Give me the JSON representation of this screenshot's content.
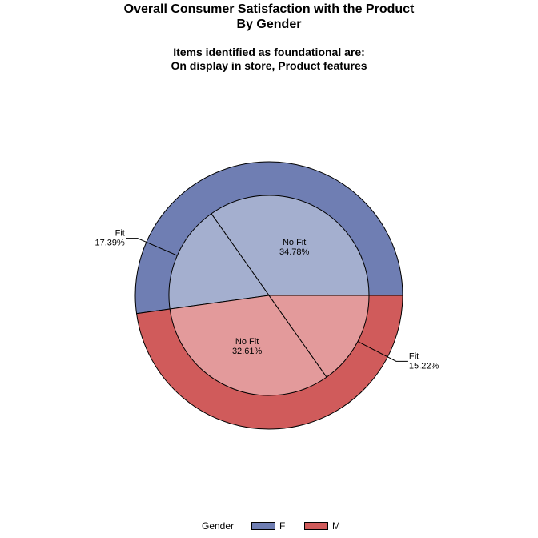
{
  "title": {
    "line1": "Overall Consumer Satisfaction with the Product",
    "line2": "By Gender"
  },
  "subtitle": {
    "line1": "Items identified as foundational are:",
    "line2": "On display in store, Product features"
  },
  "colors": {
    "F_outer": "#6F7EB3",
    "F_inner": "#A4AFCF",
    "M_outer": "#D05B5B",
    "M_inner": "#E39A9B",
    "edge": "#000000"
  },
  "chart_data": {
    "type": "pie",
    "variant": "nested-ring",
    "outer_ring": {
      "name": "Gender",
      "slices": [
        {
          "label": "F",
          "value": 52.17
        },
        {
          "label": "M",
          "value": 47.83
        }
      ]
    },
    "inner_pie": {
      "slices": [
        {
          "group": "F",
          "label": "No Fit",
          "value": 34.78,
          "value_text": "34.78%"
        },
        {
          "group": "F",
          "label": "Fit",
          "value": 17.39,
          "value_text": "17.39%"
        },
        {
          "group": "M",
          "label": "No Fit",
          "value": 32.61,
          "value_text": "32.61%"
        },
        {
          "group": "M",
          "label": "Fit",
          "value": 15.22,
          "value_text": "15.22%"
        }
      ]
    },
    "start": "3 o'clock",
    "direction": "counter-clockwise",
    "legend_position": "bottom"
  },
  "legend": {
    "title": "Gender",
    "items": [
      {
        "label": "F",
        "color": "#6F7EB3"
      },
      {
        "label": "M",
        "color": "#D05B5B"
      }
    ]
  }
}
